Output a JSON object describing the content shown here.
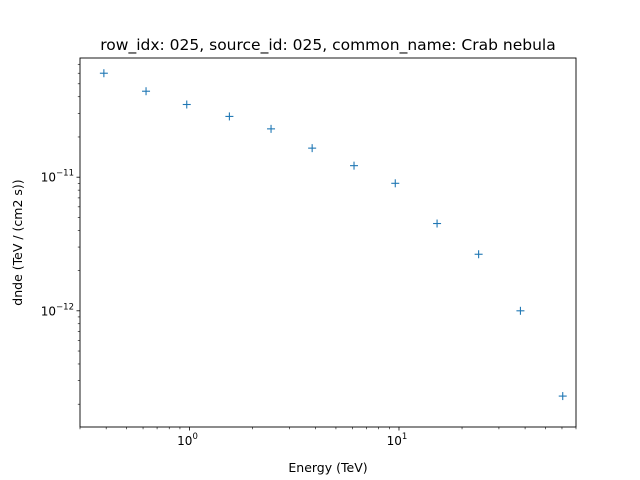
{
  "chart_data": {
    "type": "scatter",
    "title": "row_idx: 025, source_id: 025, common_name: Crab nebula",
    "xlabel": "Energy (TeV)",
    "ylabel": "dnde (TeV / (cm2 s))",
    "x_scale": "log",
    "y_scale": "log",
    "xlim": [
      0.3,
      70
    ],
    "ylim": [
      1.35e-13,
      7.8e-11
    ],
    "grid": false,
    "legend": "none",
    "marker": "+",
    "color": "#1f77b4",
    "x_ticks": [
      {
        "value": 1,
        "base": "10",
        "exp": "0"
      },
      {
        "value": 10,
        "base": "10",
        "exp": "1"
      }
    ],
    "y_ticks": [
      {
        "value": 1e-12,
        "base": "10",
        "exp": "−12"
      },
      {
        "value": 1e-11,
        "base": "10",
        "exp": "−11"
      }
    ],
    "points": [
      {
        "x": 0.39,
        "y": 6e-11
      },
      {
        "x": 0.62,
        "y": 4.4e-11
      },
      {
        "x": 0.97,
        "y": 3.5e-11
      },
      {
        "x": 1.55,
        "y": 2.85e-11
      },
      {
        "x": 2.45,
        "y": 2.3e-11
      },
      {
        "x": 3.85,
        "y": 1.65e-11
      },
      {
        "x": 6.1,
        "y": 1.22e-11
      },
      {
        "x": 9.6,
        "y": 9e-12
      },
      {
        "x": 15.2,
        "y": 4.5e-12
      },
      {
        "x": 24.0,
        "y": 2.65e-12
      },
      {
        "x": 38.0,
        "y": 1e-12
      },
      {
        "x": 60.5,
        "y": 2.3e-13
      }
    ]
  }
}
